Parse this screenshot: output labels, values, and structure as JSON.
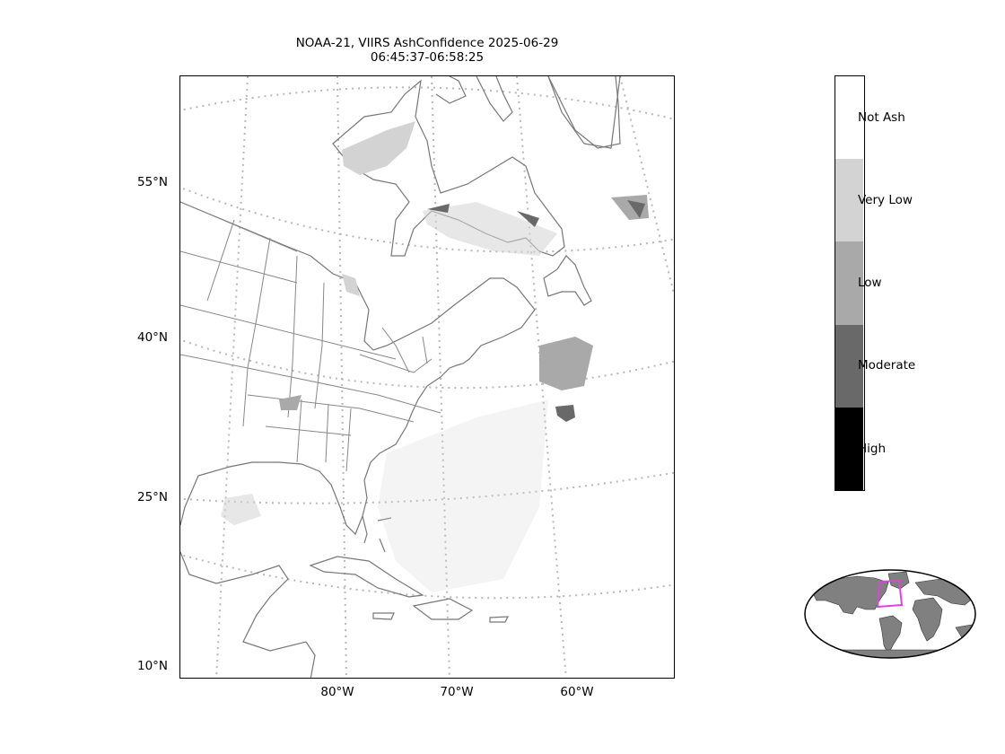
{
  "title": {
    "line1": "NOAA-21, VIIRS AshConfidence 2025-06-29",
    "line2": "06:45:37-06:58:25"
  },
  "map": {
    "latitude_labels": [
      "55°N",
      "40°N",
      "25°N",
      "10°N"
    ],
    "longitude_labels": [
      "80°W",
      "70°W",
      "60°W"
    ]
  },
  "legend": {
    "categories": [
      {
        "label": "Not Ash",
        "color": "#ffffff"
      },
      {
        "label": "Very Low",
        "color": "#d3d3d3"
      },
      {
        "label": "Low",
        "color": "#a9a9a9"
      },
      {
        "label": "Moderate",
        "color": "#696969"
      },
      {
        "label": "High",
        "color": "#000000"
      }
    ]
  },
  "inset": {
    "highlight_color": "#dd44dd",
    "land_color": "#808080"
  }
}
